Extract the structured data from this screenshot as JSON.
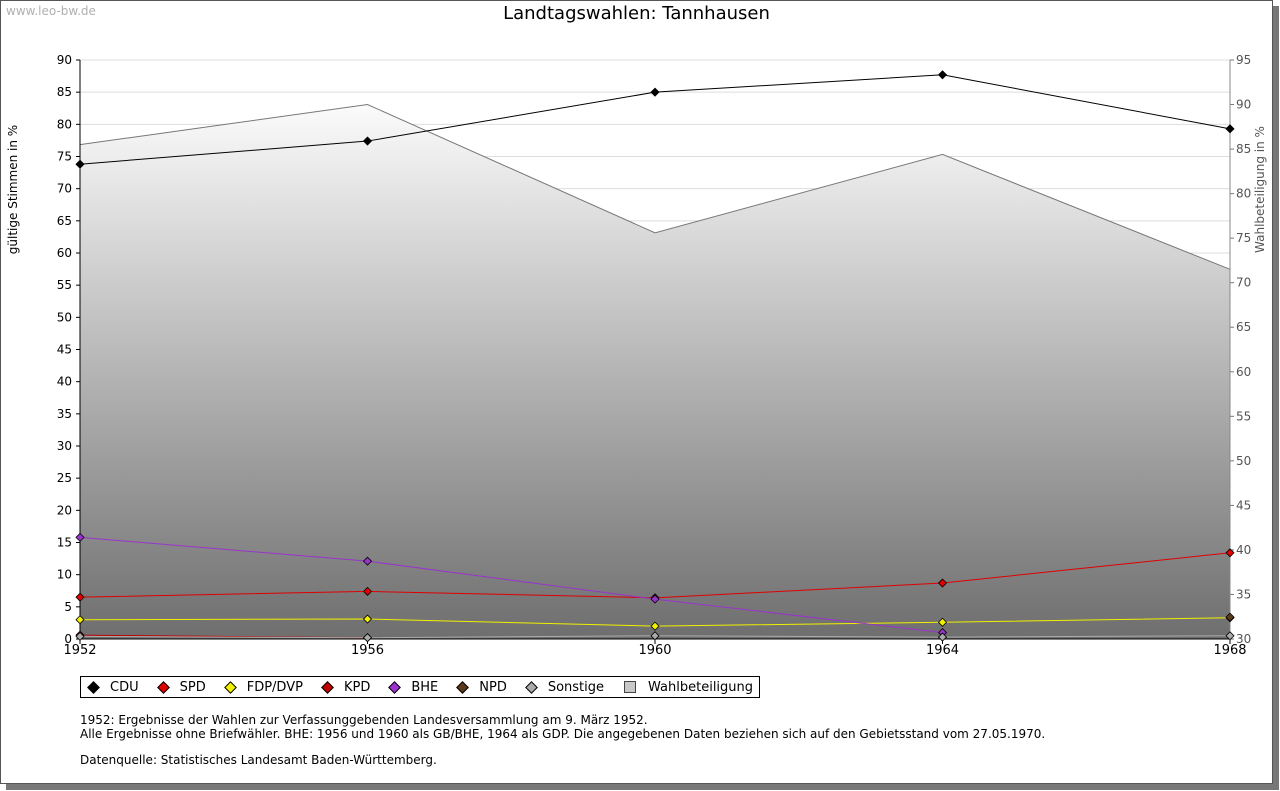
{
  "watermark": "www.leo-bw.de",
  "chart_data": {
    "type": "line",
    "title": "Landtagswahlen: Tannhausen",
    "ylabel": "gültige Stimmen in %",
    "ylabel_right": "Wahlbeteiligung in %",
    "xlabel": "",
    "ylim": [
      0,
      90
    ],
    "ylim_right": [
      30,
      95
    ],
    "y_ticks": [
      0,
      5,
      10,
      15,
      20,
      25,
      30,
      35,
      40,
      45,
      50,
      55,
      60,
      65,
      70,
      75,
      80,
      85,
      90
    ],
    "y_ticks_right": [
      30,
      35,
      40,
      45,
      50,
      55,
      60,
      65,
      70,
      75,
      80,
      85,
      90,
      95
    ],
    "categories": [
      "1952",
      "1956",
      "1960",
      "1964",
      "1968"
    ],
    "series": [
      {
        "name": "CDU",
        "color": "#000000",
        "values": [
          73.8,
          77.4,
          85.0,
          87.7,
          79.3
        ]
      },
      {
        "name": "SPD",
        "color": "#e00000",
        "values": [
          6.5,
          7.4,
          6.4,
          8.7,
          13.4
        ]
      },
      {
        "name": "FDP/DVP",
        "color": "#f0f000",
        "values": [
          3.0,
          3.1,
          2.0,
          2.6,
          3.3
        ]
      },
      {
        "name": "KPD",
        "color": "#c00000",
        "values": [
          0.6,
          0.2,
          null,
          null,
          null
        ]
      },
      {
        "name": "BHE",
        "color": "#9933cc",
        "values": [
          15.8,
          12.1,
          6.2,
          1.0,
          null
        ]
      },
      {
        "name": "NPD",
        "color": "#5a3a1a",
        "values": [
          null,
          null,
          null,
          null,
          3.4
        ]
      },
      {
        "name": "Sonstige",
        "color": "#aaaaaa",
        "values": [
          0.4,
          0.2,
          0.5,
          0.3,
          0.5
        ]
      }
    ],
    "turnout": {
      "name": "Wahlbeteiligung",
      "color": "#c8c8c8",
      "values": [
        85.5,
        90.0,
        75.6,
        84.4,
        71.5
      ]
    }
  },
  "notes": {
    "line1": "1952: Ergebnisse der Wahlen zur Verfassunggebenden Landesversammlung am 9. März 1952.",
    "line2": "Alle Ergebnisse ohne Briefwähler. BHE: 1956 und 1960 als GB/BHE, 1964 als GDP. Die angegebenen Daten beziehen sich auf den Gebietsstand vom 27.05.1970.",
    "line3": "Datenquelle: Statistisches Landesamt Baden-Württemberg."
  }
}
